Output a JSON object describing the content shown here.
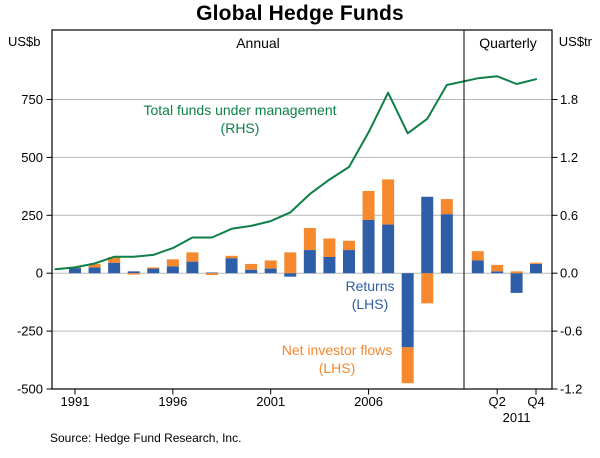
{
  "title": "Global Hedge Funds",
  "source": "Source: Hedge Fund Research, Inc.",
  "panels": {
    "annual_label": "Annual",
    "quarterly_label": "Quarterly"
  },
  "axes": {
    "left_unit": "US$b",
    "right_unit": "US$tr"
  },
  "annotations": {
    "tfum_line1": "Total funds under management",
    "tfum_line2": "(RHS)",
    "returns_line1": "Returns",
    "returns_line2": "(LHS)",
    "flows_line1": "Net investor flows",
    "flows_line2": "(LHS)"
  },
  "chart_data": {
    "type": "combo",
    "title": "Global Hedge Funds",
    "panel_labels": [
      "Annual",
      "Quarterly"
    ],
    "left_axis": {
      "unit": "US$b",
      "ticks": [
        750,
        500,
        250,
        0,
        -250,
        -500
      ],
      "min": -500,
      "max": 1050
    },
    "right_axis": {
      "unit": "US$tr",
      "tick_labels": [
        "1.8",
        "1.2",
        "0.6",
        "0.0",
        "-0.6",
        "-1.2"
      ]
    },
    "x_ticks_annual": [
      1991,
      1996,
      2001,
      2006
    ],
    "x_ticks_quarterly": [
      {
        "label": "Q2",
        "index": 1
      },
      {
        "label": "Q4",
        "index": 3
      }
    ],
    "x_axis_year_label": "2011",
    "series_meta": [
      {
        "name": "Returns",
        "axis": "LHS",
        "type": "bar",
        "color": "#2f5ea8"
      },
      {
        "name": "Net investor flows",
        "axis": "LHS",
        "type": "bar",
        "color": "#f6882d"
      },
      {
        "name": "Total funds under management",
        "axis": "RHS",
        "type": "line",
        "color": "#0e8047"
      }
    ],
    "annual": {
      "years": [
        1990,
        1991,
        1992,
        1993,
        1994,
        1995,
        1996,
        1997,
        1998,
        1999,
        2000,
        2001,
        2002,
        2003,
        2004,
        2005,
        2006,
        2007,
        2008,
        2009,
        2010
      ],
      "returns_usdb": [
        0,
        22,
        25,
        45,
        8,
        20,
        30,
        50,
        3,
        65,
        15,
        20,
        -15,
        100,
        70,
        100,
        230,
        210,
        -320,
        330,
        255
      ],
      "net_investor_flows_usdb": [
        0,
        5,
        15,
        25,
        -6,
        5,
        30,
        40,
        -8,
        10,
        25,
        35,
        90,
        95,
        80,
        40,
        125,
        195,
        -155,
        -130,
        65
      ],
      "total_funds_under_management_usdtr": [
        0.04,
        0.06,
        0.1,
        0.17,
        0.17,
        0.19,
        0.26,
        0.37,
        0.37,
        0.46,
        0.49,
        0.54,
        0.63,
        0.82,
        0.97,
        1.1,
        1.46,
        1.87,
        1.45,
        1.6,
        1.95
      ]
    },
    "quarterly_2011": {
      "quarters": [
        "Q1",
        "Q2",
        "Q3",
        "Q4"
      ],
      "returns_usdb": [
        55,
        8,
        -85,
        40
      ],
      "net_investor_flows_usdb": [
        40,
        28,
        8,
        5
      ],
      "total_funds_under_management_usdtr": [
        2.02,
        2.04,
        1.96,
        2.01
      ]
    },
    "grid_color": "#b8b8b8",
    "frame_color": "#000000"
  }
}
